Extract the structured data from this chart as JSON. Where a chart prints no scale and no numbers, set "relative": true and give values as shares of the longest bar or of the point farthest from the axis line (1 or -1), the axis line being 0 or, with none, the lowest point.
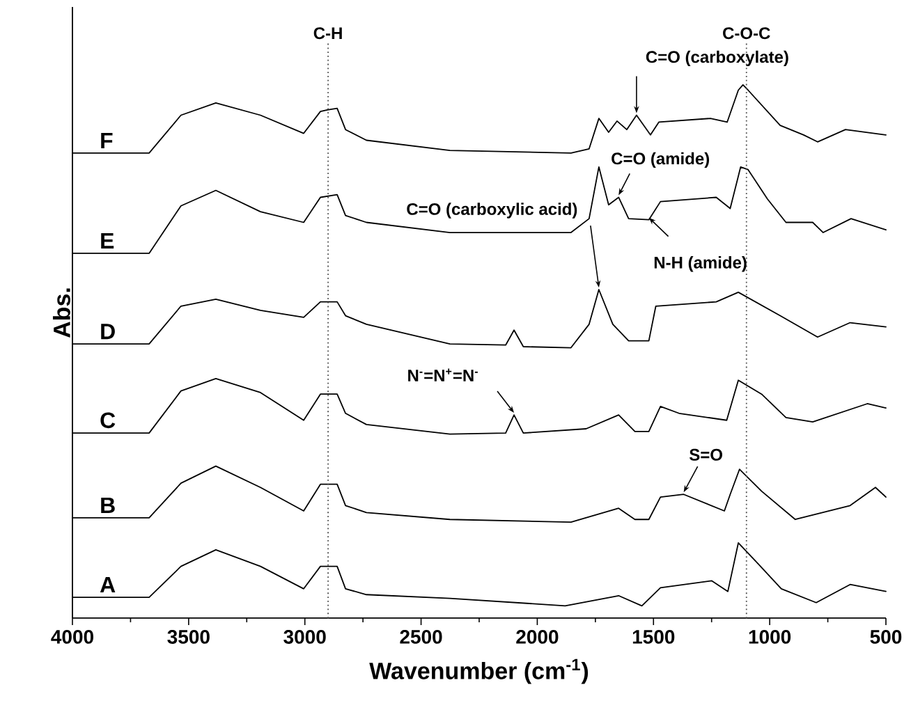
{
  "chart_data": {
    "type": "line",
    "relative": true,
    "xlabel": "Wavenumber (cm$^{-1}$)",
    "ylabel": "Abs.",
    "xlim": [
      4000,
      500
    ],
    "xticks": [
      4000,
      3500,
      3000,
      2500,
      2000,
      1500,
      1000,
      500
    ],
    "grid": false,
    "marker": "none",
    "line_style": "solid",
    "series": [
      {
        "name": "A",
        "color": "#000000",
        "x": [
          4000,
          3670,
          3533,
          3383,
          3191,
          3005,
          2933,
          2861,
          2825,
          2735,
          2376,
          1880,
          1650,
          1550,
          1470,
          1250,
          1180,
          1135,
          1050,
          950,
          800,
          654,
          500
        ],
        "values": [
          0.039,
          0.039,
          0.097,
          0.128,
          0.097,
          0.055,
          0.097,
          0.097,
          0.055,
          0.044,
          0.037,
          0.023,
          0.042,
          0.023,
          0.057,
          0.07,
          0.05,
          0.141,
          0.102,
          0.055,
          0.029,
          0.063,
          0.05
        ]
      },
      {
        "name": "B",
        "color": "#000000",
        "x": [
          4000,
          3670,
          3533,
          3383,
          3191,
          3005,
          2933,
          2861,
          2825,
          2735,
          2376,
          1855,
          1650,
          1580,
          1520,
          1470,
          1370,
          1195,
          1170,
          1130,
          1035,
          890,
          654,
          545,
          500
        ],
        "values": [
          0.188,
          0.188,
          0.253,
          0.285,
          0.245,
          0.201,
          0.251,
          0.251,
          0.211,
          0.198,
          0.185,
          0.18,
          0.206,
          0.185,
          0.185,
          0.227,
          0.232,
          0.201,
          0.232,
          0.279,
          0.238,
          0.185,
          0.211,
          0.245,
          0.227
        ]
      },
      {
        "name": "C",
        "color": "#000000",
        "x": [
          4000,
          3670,
          3533,
          3383,
          3191,
          3005,
          2933,
          2861,
          2825,
          2735,
          2376,
          2136,
          2100,
          2060,
          1790,
          1650,
          1580,
          1520,
          1470,
          1390,
          1185,
          1135,
          1035,
          930,
          815,
          580,
          500
        ],
        "values": [
          0.347,
          0.347,
          0.426,
          0.449,
          0.423,
          0.371,
          0.42,
          0.42,
          0.384,
          0.363,
          0.345,
          0.347,
          0.381,
          0.347,
          0.355,
          0.381,
          0.35,
          0.35,
          0.397,
          0.384,
          0.371,
          0.446,
          0.42,
          0.376,
          0.368,
          0.402,
          0.394
        ]
      },
      {
        "name": "D",
        "color": "#000000",
        "x": [
          4000,
          3670,
          3533,
          3383,
          3191,
          3005,
          2933,
          2861,
          2825,
          2735,
          2376,
          2136,
          2100,
          2060,
          1855,
          1777,
          1735,
          1675,
          1607,
          1520,
          1490,
          1230,
          1135,
          955,
          794,
          654,
          500
        ],
        "values": [
          0.514,
          0.514,
          0.585,
          0.598,
          0.577,
          0.564,
          0.593,
          0.593,
          0.567,
          0.551,
          0.514,
          0.512,
          0.54,
          0.509,
          0.507,
          0.551,
          0.616,
          0.551,
          0.52,
          0.52,
          0.585,
          0.593,
          0.611,
          0.567,
          0.527,
          0.554,
          0.546
        ]
      },
      {
        "name": "E",
        "color": "#000000",
        "x": [
          4000,
          3670,
          3533,
          3383,
          3191,
          3005,
          2933,
          2861,
          2825,
          2735,
          2376,
          1855,
          1777,
          1735,
          1693,
          1650,
          1607,
          1520,
          1470,
          1230,
          1170,
          1125,
          1093,
          1010,
          930,
          815,
          770,
          650,
          500
        ],
        "values": [
          0.684,
          0.684,
          0.773,
          0.802,
          0.762,
          0.742,
          0.789,
          0.794,
          0.755,
          0.742,
          0.723,
          0.723,
          0.749,
          0.846,
          0.775,
          0.789,
          0.749,
          0.747,
          0.781,
          0.789,
          0.768,
          0.846,
          0.841,
          0.786,
          0.742,
          0.742,
          0.723,
          0.749,
          0.728
        ]
      },
      {
        "name": "F",
        "color": "#000000",
        "x": [
          4000,
          3670,
          3533,
          3383,
          3191,
          3005,
          2933,
          2903,
          2861,
          2825,
          2735,
          2376,
          1855,
          1777,
          1735,
          1693,
          1657,
          1615,
          1573,
          1513,
          1477,
          1255,
          1183,
          1135,
          1115,
          1093,
          955,
          854,
          794,
          674,
          500
        ],
        "values": [
          0.872,
          0.872,
          0.943,
          0.966,
          0.943,
          0.909,
          0.95,
          0.953,
          0.956,
          0.916,
          0.896,
          0.877,
          0.872,
          0.88,
          0.937,
          0.911,
          0.932,
          0.916,
          0.943,
          0.906,
          0.93,
          0.937,
          0.93,
          0.99,
          1.0,
          0.99,
          0.924,
          0.906,
          0.893,
          0.916,
          0.906
        ]
      }
    ],
    "ref_lines": [
      {
        "axis": "x",
        "value": 2900,
        "label": "C-H",
        "line_style": "dotted"
      },
      {
        "axis": "x",
        "value": 1100,
        "label": "C-O-C",
        "line_style": "dotted"
      }
    ],
    "annotations": [
      {
        "text": "C=O (carboxylate)",
        "x": 1573,
        "y": 0.943
      },
      {
        "text": "C=O (amide)",
        "x": 1650,
        "y": 0.789
      },
      {
        "text": "N-H (amide)",
        "x": 1520,
        "y": 0.747
      },
      {
        "text": "C=O (carboxylic acid)",
        "x": 1735,
        "y": 0.616
      },
      {
        "text": "N$^{-}$=N$^{+}$=N$^{-}$",
        "x": 2100,
        "y": 0.381
      },
      {
        "text": "S=O",
        "x": 1370,
        "y": 0.232
      }
    ]
  }
}
